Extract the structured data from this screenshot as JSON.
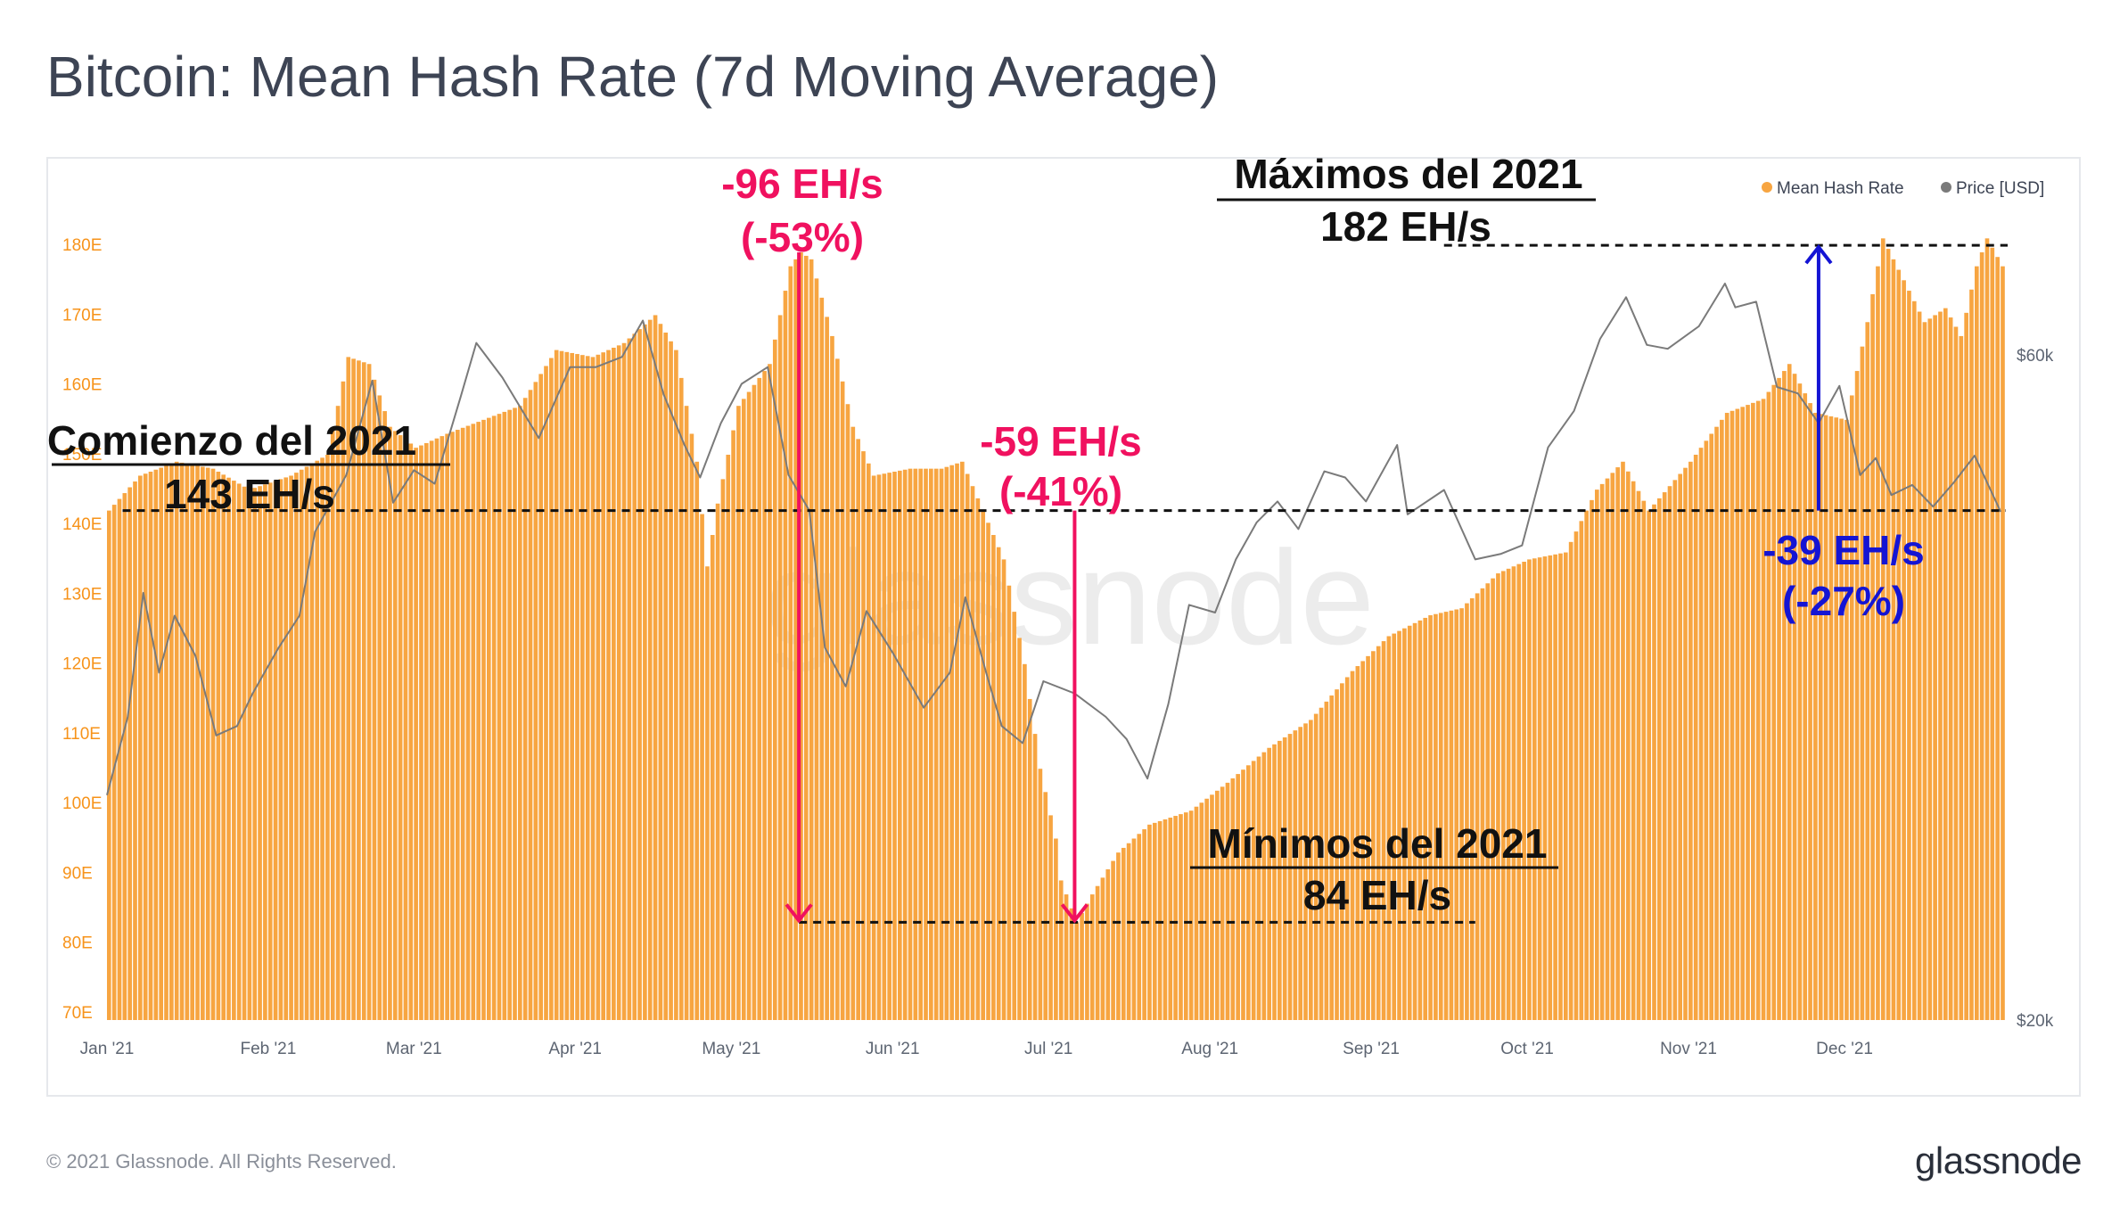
{
  "title": "Bitcoin: Mean Hash Rate (7d Moving Average)",
  "footer": {
    "copyright": "© 2021 Glassnode. All Rights Reserved.",
    "logo": "glassnode"
  },
  "watermark": "glassnode",
  "colors": {
    "bars": "#f7a541",
    "price_line": "#7a7a7a",
    "drop_annotation": "#f0115f",
    "recovery_annotation": "#1414d4",
    "axis_text": "#f7931a",
    "month_text": "#5d6572"
  },
  "chart_data": {
    "type": "bar",
    "x_start": "2021-01-01",
    "x_end": "2021-12-31",
    "ylim": [
      70,
      180
    ],
    "y_ticks": [
      "70E",
      "80E",
      "90E",
      "100E",
      "110E",
      "120E",
      "130E",
      "140E",
      "150E",
      "160E",
      "170E",
      "180E"
    ],
    "y2_ticks": [
      "$20k",
      "$60k"
    ],
    "y2_scale": "log",
    "x_ticks": [
      "Jan '21",
      "Feb '21",
      "Mar '21",
      "Apr '21",
      "May '21",
      "Jun '21",
      "Jul '21",
      "Aug '21",
      "Sep '21",
      "Oct '21",
      "Nov '21",
      "Dec '21"
    ],
    "legend": [
      {
        "name": "Mean Hash Rate",
        "color": "#f7a541"
      },
      {
        "name": "Price [USD]",
        "color": "#7a7a7a"
      }
    ],
    "legend_position": "top-right",
    "series": [
      {
        "name": "Mean Hash Rate",
        "type": "bar",
        "unit": "EH/s",
        "points": [
          [
            "2021-01-01",
            143
          ],
          [
            "2021-01-07",
            148
          ],
          [
            "2021-01-14",
            150
          ],
          [
            "2021-01-21",
            149
          ],
          [
            "2021-01-28",
            146
          ],
          [
            "2021-02-05",
            148
          ],
          [
            "2021-02-12",
            151
          ],
          [
            "2021-02-16",
            165
          ],
          [
            "2021-02-20",
            164
          ],
          [
            "2021-02-24",
            155
          ],
          [
            "2021-03-01",
            152
          ],
          [
            "2021-03-07",
            154
          ],
          [
            "2021-03-14",
            156
          ],
          [
            "2021-03-21",
            158
          ],
          [
            "2021-03-28",
            166
          ],
          [
            "2021-04-04",
            165
          ],
          [
            "2021-04-10",
            167
          ],
          [
            "2021-04-16",
            171
          ],
          [
            "2021-04-20",
            166
          ],
          [
            "2021-04-24",
            150
          ],
          [
            "2021-04-26",
            135
          ],
          [
            "2021-04-28",
            144
          ],
          [
            "2021-05-02",
            158
          ],
          [
            "2021-05-08",
            164
          ],
          [
            "2021-05-12",
            178
          ],
          [
            "2021-05-14",
            180
          ],
          [
            "2021-05-16",
            179
          ],
          [
            "2021-05-20",
            168
          ],
          [
            "2021-05-24",
            155
          ],
          [
            "2021-05-28",
            148
          ],
          [
            "2021-06-04",
            149
          ],
          [
            "2021-06-10",
            149
          ],
          [
            "2021-06-14",
            150
          ],
          [
            "2021-06-18",
            143
          ],
          [
            "2021-06-22",
            136
          ],
          [
            "2021-06-26",
            121
          ],
          [
            "2021-06-29",
            106
          ],
          [
            "2021-07-02",
            96
          ],
          [
            "2021-07-03",
            90
          ],
          [
            "2021-07-05",
            86
          ],
          [
            "2021-07-06",
            84
          ],
          [
            "2021-07-09",
            88
          ],
          [
            "2021-07-14",
            94
          ],
          [
            "2021-07-20",
            98
          ],
          [
            "2021-07-28",
            100
          ],
          [
            "2021-08-04",
            104
          ],
          [
            "2021-08-12",
            109
          ],
          [
            "2021-08-20",
            113
          ],
          [
            "2021-08-28",
            120
          ],
          [
            "2021-09-04",
            125
          ],
          [
            "2021-09-12",
            128
          ],
          [
            "2021-09-18",
            129
          ],
          [
            "2021-09-25",
            134
          ],
          [
            "2021-10-01",
            136
          ],
          [
            "2021-10-08",
            137
          ],
          [
            "2021-10-14",
            146
          ],
          [
            "2021-10-19",
            150
          ],
          [
            "2021-10-24",
            143
          ],
          [
            "2021-11-01",
            150
          ],
          [
            "2021-11-08",
            157
          ],
          [
            "2021-11-15",
            159
          ],
          [
            "2021-11-20",
            164
          ],
          [
            "2021-11-25",
            157
          ],
          [
            "2021-12-01",
            156
          ],
          [
            "2021-12-05",
            170
          ],
          [
            "2021-12-08",
            182
          ],
          [
            "2021-12-12",
            176
          ],
          [
            "2021-12-16",
            170
          ],
          [
            "2021-12-20",
            172
          ],
          [
            "2021-12-23",
            168
          ],
          [
            "2021-12-26",
            178
          ],
          [
            "2021-12-28",
            182
          ],
          [
            "2021-12-31",
            178
          ]
        ]
      },
      {
        "name": "Price [USD]",
        "type": "line",
        "unit": "USD",
        "points": [
          [
            "2021-01-01",
            29000
          ],
          [
            "2021-01-05",
            33000
          ],
          [
            "2021-01-08",
            40500
          ],
          [
            "2021-01-11",
            35500
          ],
          [
            "2021-01-14",
            39000
          ],
          [
            "2021-01-18",
            36500
          ],
          [
            "2021-01-22",
            32000
          ],
          [
            "2021-01-26",
            32500
          ],
          [
            "2021-01-29",
            34300
          ],
          [
            "2021-02-03",
            37000
          ],
          [
            "2021-02-07",
            39000
          ],
          [
            "2021-02-10",
            44800
          ],
          [
            "2021-02-16",
            49200
          ],
          [
            "2021-02-21",
            57500
          ],
          [
            "2021-02-25",
            47000
          ],
          [
            "2021-03-01",
            49600
          ],
          [
            "2021-03-05",
            48500
          ],
          [
            "2021-03-10",
            56000
          ],
          [
            "2021-03-13",
            61200
          ],
          [
            "2021-03-18",
            57800
          ],
          [
            "2021-03-25",
            52300
          ],
          [
            "2021-03-31",
            58800
          ],
          [
            "2021-04-05",
            58800
          ],
          [
            "2021-04-10",
            59800
          ],
          [
            "2021-04-14",
            63500
          ],
          [
            "2021-04-18",
            56200
          ],
          [
            "2021-04-22",
            51700
          ],
          [
            "2021-04-25",
            49000
          ],
          [
            "2021-04-29",
            53600
          ],
          [
            "2021-05-03",
            57200
          ],
          [
            "2021-05-08",
            58800
          ],
          [
            "2021-05-12",
            49200
          ],
          [
            "2021-05-16",
            46400
          ],
          [
            "2021-05-19",
            37000
          ],
          [
            "2021-05-23",
            34700
          ],
          [
            "2021-05-27",
            39300
          ],
          [
            "2021-06-01",
            36700
          ],
          [
            "2021-06-07",
            33500
          ],
          [
            "2021-06-12",
            35500
          ],
          [
            "2021-06-15",
            40200
          ],
          [
            "2021-06-19",
            35500
          ],
          [
            "2021-06-22",
            32500
          ],
          [
            "2021-06-26",
            31600
          ],
          [
            "2021-06-30",
            35000
          ],
          [
            "2021-07-06",
            34300
          ],
          [
            "2021-07-12",
            33000
          ],
          [
            "2021-07-16",
            31800
          ],
          [
            "2021-07-20",
            29800
          ],
          [
            "2021-07-24",
            33700
          ],
          [
            "2021-07-28",
            39700
          ],
          [
            "2021-08-02",
            39200
          ],
          [
            "2021-08-06",
            42800
          ],
          [
            "2021-08-10",
            45500
          ],
          [
            "2021-08-14",
            47100
          ],
          [
            "2021-08-18",
            45000
          ],
          [
            "2021-08-23",
            49500
          ],
          [
            "2021-08-27",
            49000
          ],
          [
            "2021-08-31",
            47100
          ],
          [
            "2021-09-06",
            51700
          ],
          [
            "2021-09-08",
            46100
          ],
          [
            "2021-09-15",
            48000
          ],
          [
            "2021-09-21",
            42800
          ],
          [
            "2021-09-26",
            43200
          ],
          [
            "2021-09-30",
            43800
          ],
          [
            "2021-10-05",
            51500
          ],
          [
            "2021-10-10",
            54700
          ],
          [
            "2021-10-15",
            61600
          ],
          [
            "2021-10-20",
            66000
          ],
          [
            "2021-10-24",
            61000
          ],
          [
            "2021-10-28",
            60600
          ],
          [
            "2021-11-03",
            62900
          ],
          [
            "2021-11-08",
            67500
          ],
          [
            "2021-11-10",
            64900
          ],
          [
            "2021-11-14",
            65500
          ],
          [
            "2021-11-18",
            56900
          ],
          [
            "2021-11-22",
            56300
          ],
          [
            "2021-11-26",
            53600
          ],
          [
            "2021-11-30",
            57000
          ],
          [
            "2021-12-04",
            49200
          ],
          [
            "2021-12-07",
            50600
          ],
          [
            "2021-12-10",
            47600
          ],
          [
            "2021-12-14",
            48400
          ],
          [
            "2021-12-18",
            46700
          ],
          [
            "2021-12-22",
            48600
          ],
          [
            "2021-12-26",
            50800
          ],
          [
            "2021-12-31",
            46300
          ]
        ]
      }
    ],
    "annotations": {
      "start": {
        "title": "Comienzo del 2021",
        "value": "143 EH/s"
      },
      "max": {
        "title": "Máximos del 2021",
        "value": "182 EH/s"
      },
      "min": {
        "title": "Mínimos del 2021",
        "value": "84 EH/s"
      },
      "drop1": {
        "line1": "-96 EH/s",
        "line2": "(-53%)"
      },
      "drop2": {
        "line1": "-59 EH/s",
        "line2": "(-41%)"
      },
      "rise": {
        "line1": "-39 EH/s",
        "line2": "(-27%)"
      }
    }
  }
}
